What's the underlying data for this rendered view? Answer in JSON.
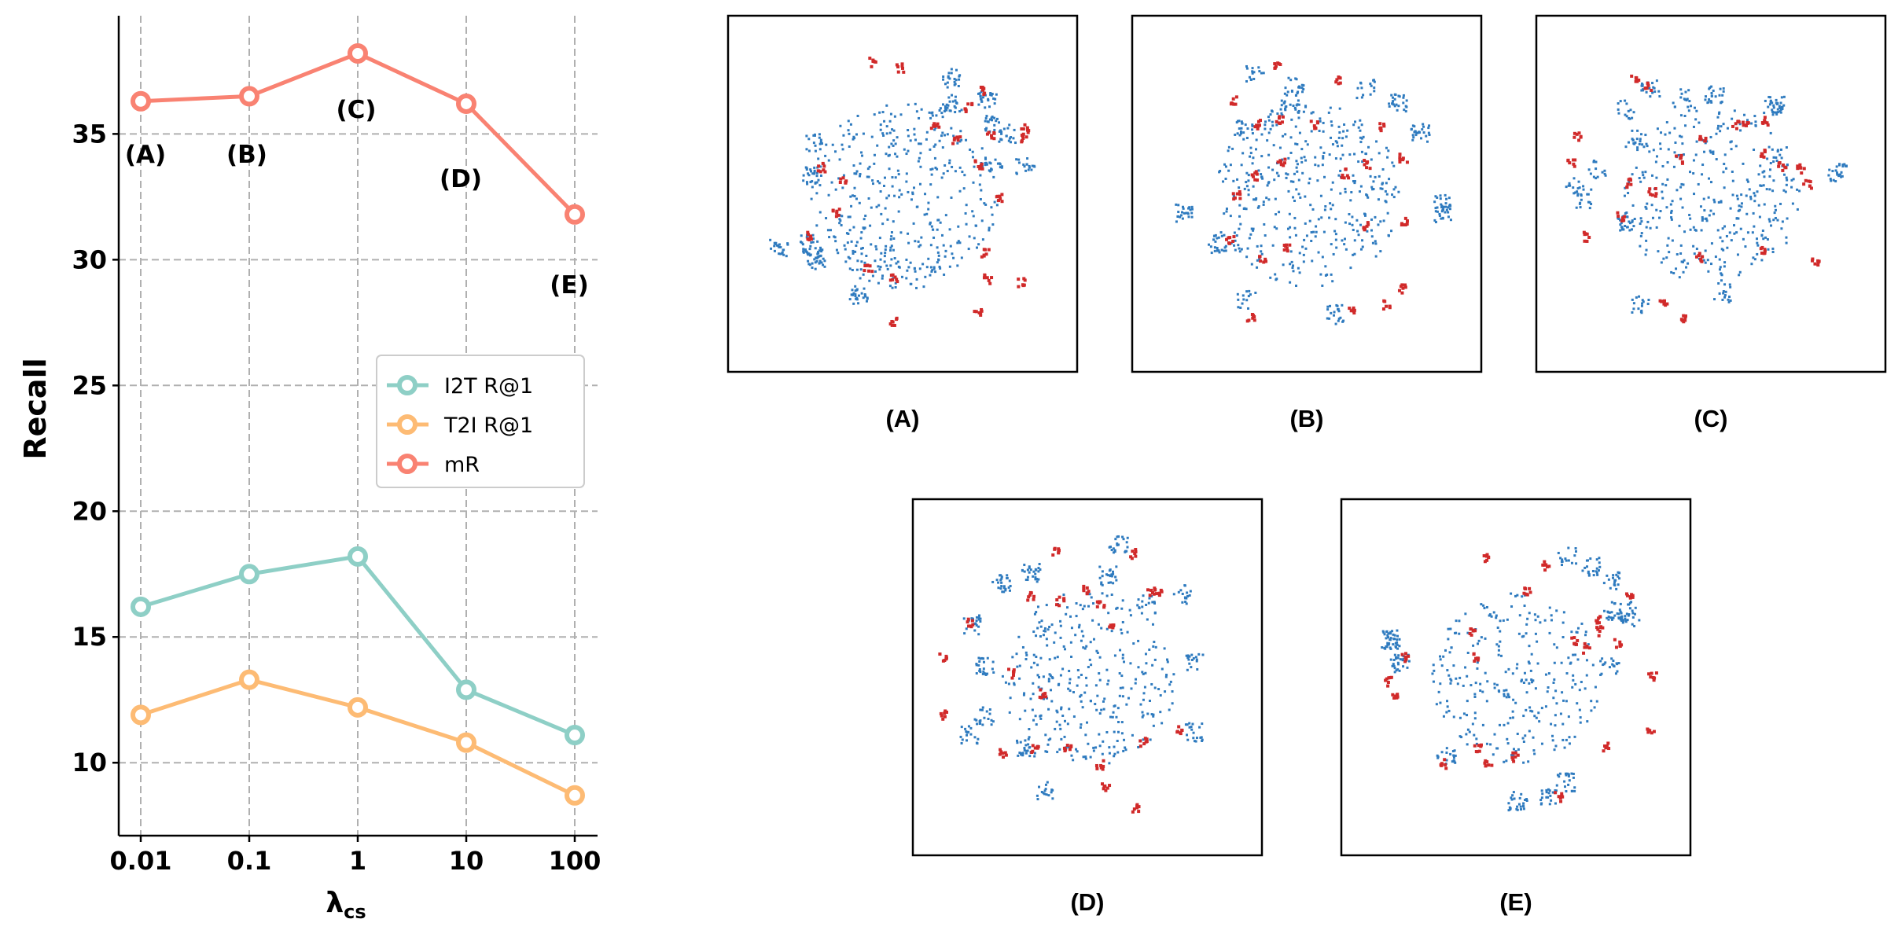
{
  "chart_data": [
    {
      "type": "line",
      "xlabel": "λ",
      "xlabel_sub": "cs",
      "ylabel": "Recall",
      "x_scale": "categorical (log-spaced)",
      "categories": [
        "0.01",
        "0.1",
        "1",
        "10",
        "100"
      ],
      "yticks": [
        10,
        15,
        20,
        25,
        30,
        35
      ],
      "ylim": [
        7.1,
        39.7
      ],
      "grid": true,
      "legend_position": "center-right",
      "series": [
        {
          "name": "I2T R@1",
          "color": "#8ecfc6",
          "values": [
            16.2,
            17.5,
            18.2,
            12.9,
            11.1
          ]
        },
        {
          "name": "T2I R@1",
          "color": "#fdbb74",
          "values": [
            11.9,
            13.3,
            12.2,
            10.8,
            8.7
          ]
        },
        {
          "name": "mR",
          "color": "#f98272",
          "values": [
            36.3,
            36.5,
            38.2,
            36.2,
            31.8
          ]
        }
      ],
      "annotations": [
        "(A)",
        "(B)",
        "(C)",
        "(D)",
        "(E)"
      ]
    },
    {
      "type": "scatter",
      "description_kind": "t-SNE embeddings",
      "colors": {
        "primary": "#2f7bbf",
        "secondary": "#d12a2a"
      },
      "panels": [
        "(A)",
        "(B)",
        "(C)",
        "(D)",
        "(E)"
      ]
    }
  ]
}
